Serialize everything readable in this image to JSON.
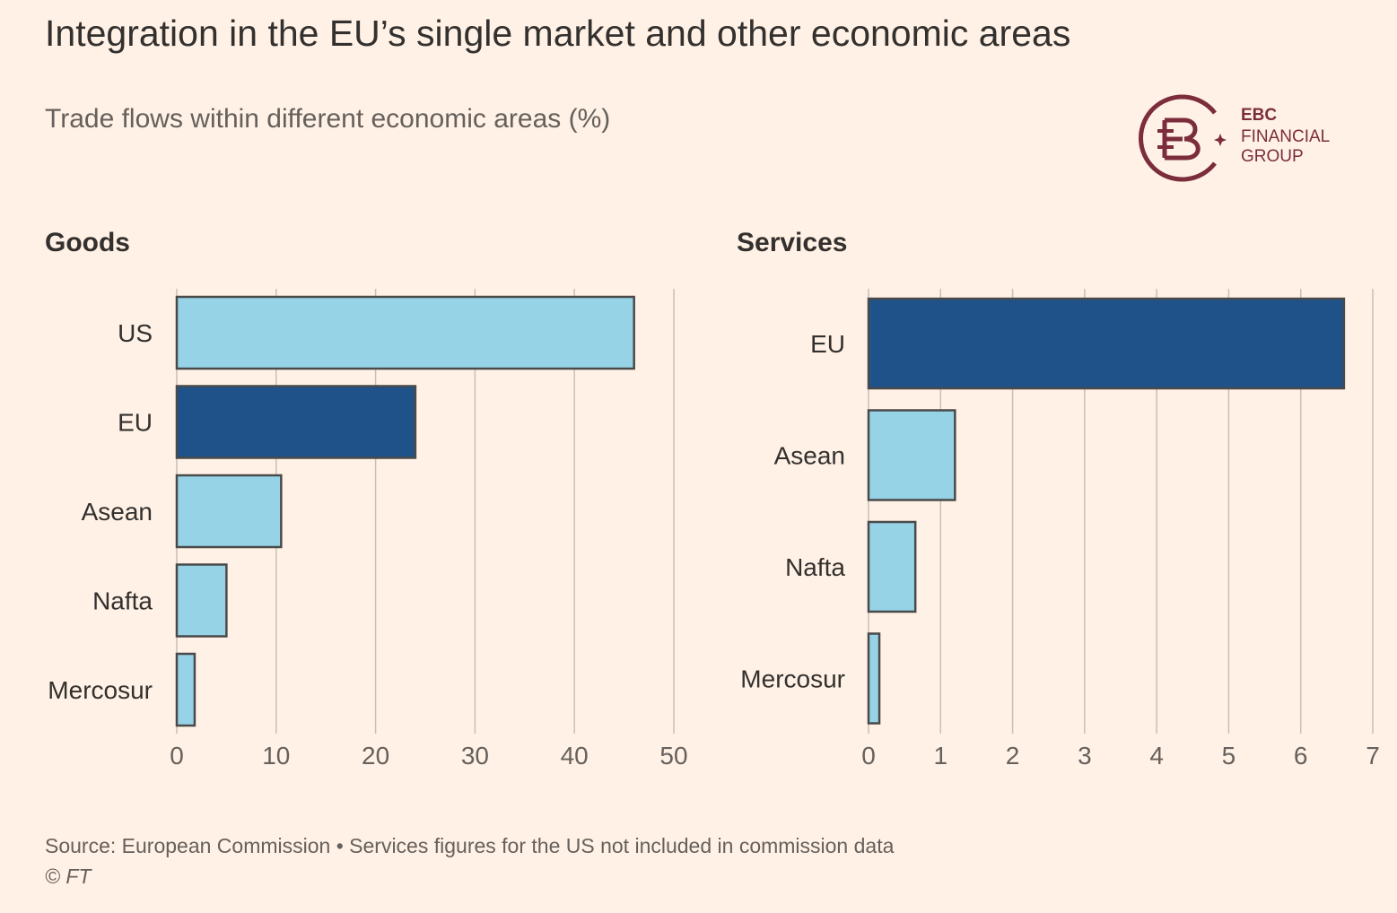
{
  "title": "Integration in the EU’s single market and other economic areas",
  "subtitle": "Trade flows within different economic areas (%)",
  "logo": {
    "line1": "EBC",
    "line2": "FINANCIAL",
    "line3": "GROUP",
    "color": "#7b2d3b"
  },
  "colors": {
    "highlight": "#1f5289",
    "other": "#96d3e6",
    "grid": "#c9bfb8",
    "text": "#33302e",
    "muted": "#66605c"
  },
  "chart_data": [
    {
      "type": "bar",
      "orientation": "horizontal",
      "title": "Goods",
      "categories": [
        "US",
        "EU",
        "Asean",
        "Nafta",
        "Mercosur"
      ],
      "values": [
        46,
        24,
        10.5,
        5,
        1.8
      ],
      "highlight": "EU",
      "xlim": [
        0,
        50
      ],
      "ticks": [
        0,
        10,
        20,
        30,
        40,
        50
      ],
      "tick_labels": [
        "0",
        "10",
        "20",
        "30",
        "40",
        "50"
      ]
    },
    {
      "type": "bar",
      "orientation": "horizontal",
      "title": "Services",
      "categories": [
        "EU",
        "Asean",
        "Nafta",
        "Mercosur"
      ],
      "values": [
        6.6,
        1.2,
        0.65,
        0.15
      ],
      "highlight": "EU",
      "xlim": [
        0,
        7
      ],
      "ticks": [
        0,
        1,
        2,
        3,
        4,
        5,
        6,
        7
      ],
      "tick_labels": [
        "0",
        "1",
        "2",
        "3",
        "4",
        "5",
        "6",
        "7"
      ]
    }
  ],
  "footer": {
    "source": "Source: European Commission • Services figures for the US not included in commission data",
    "credit": "© FT"
  }
}
